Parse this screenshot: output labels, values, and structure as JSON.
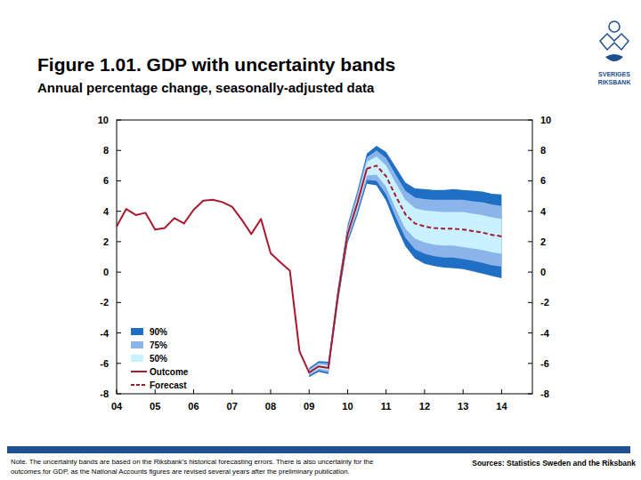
{
  "chart_data": {
    "type": "line",
    "title": "Figure 1.01. GDP with uncertainty bands",
    "subtitle": "Annual percentage change, seasonally-adjusted data",
    "logo_text": [
      "SVERIGES",
      "RIKSBANK"
    ],
    "note": [
      "Note. The uncertainty bands are based on the Riksbank's historical forecasting errors. There is also uncertainty for the",
      "outcomes for GDP, as the National Accounts figures are revised several years after the preliminary publication."
    ],
    "source": "Sources: Statistics Sweden and the Riksbank",
    "x": [
      2004,
      2004.25,
      2004.5,
      2004.75,
      2005,
      2005.25,
      2005.5,
      2005.75,
      2006,
      2006.25,
      2006.5,
      2006.75,
      2007,
      2007.25,
      2007.5,
      2007.75,
      2008,
      2008.25,
      2008.5,
      2008.75,
      2009,
      2009.25,
      2009.5,
      2009.75,
      2010,
      2010.25,
      2010.5,
      2010.75,
      2011,
      2011.25,
      2011.5,
      2011.75,
      2012,
      2012.25,
      2012.5,
      2012.75,
      2013,
      2013.25,
      2013.5,
      2013.75,
      2014
    ],
    "xlim": [
      2004,
      2014.8
    ],
    "xticks": [
      {
        "value": 2004,
        "label": "04"
      },
      {
        "value": 2005,
        "label": "05"
      },
      {
        "value": 2006,
        "label": "06"
      },
      {
        "value": 2007,
        "label": "07"
      },
      {
        "value": 2008,
        "label": "08"
      },
      {
        "value": 2009,
        "label": "09"
      },
      {
        "value": 2010,
        "label": "10"
      },
      {
        "value": 2011,
        "label": "11"
      },
      {
        "value": 2012,
        "label": "12"
      },
      {
        "value": 2013,
        "label": "13"
      },
      {
        "value": 2014,
        "label": "14"
      }
    ],
    "ylim": [
      -8,
      10
    ],
    "yticks": [
      -8,
      -6,
      -4,
      -2,
      0,
      2,
      4,
      6,
      8,
      10
    ],
    "y2lim": [
      -8,
      10
    ],
    "y2ticks": [
      -8,
      -6,
      -4,
      -2,
      0,
      2,
      4,
      6,
      8,
      10
    ],
    "grid": false,
    "legend": "lower left",
    "series": [
      {
        "name": "90%",
        "type": "band",
        "color": "#1f6fc5",
        "lower": [
          null,
          null,
          null,
          null,
          null,
          null,
          null,
          null,
          null,
          null,
          null,
          null,
          null,
          null,
          null,
          null,
          null,
          null,
          null,
          null,
          -6.9,
          -6.55,
          -6.7,
          -2.0,
          1.9,
          3.7,
          5.8,
          5.7,
          4.7,
          3.1,
          1.7,
          0.9,
          0.55,
          0.4,
          0.3,
          0.25,
          0.2,
          0.05,
          -0.1,
          -0.25,
          -0.4
        ],
        "values": [
          null,
          null,
          null,
          null,
          null,
          null,
          null,
          null,
          null,
          null,
          null,
          null,
          null,
          null,
          null,
          null,
          null,
          null,
          null,
          null,
          -6.3,
          -5.85,
          -5.9,
          -1.0,
          3.1,
          5.3,
          7.8,
          8.3,
          7.9,
          6.9,
          5.9,
          5.5,
          5.45,
          5.4,
          5.4,
          5.45,
          5.4,
          5.35,
          5.3,
          5.15,
          5.1
        ]
      },
      {
        "name": "75%",
        "type": "band",
        "color": "#8ab4ea",
        "lower": [
          null,
          null,
          null,
          null,
          null,
          null,
          null,
          null,
          null,
          null,
          null,
          null,
          null,
          null,
          null,
          null,
          null,
          null,
          null,
          null,
          -6.8,
          -6.45,
          -6.6,
          -1.85,
          2.05,
          3.9,
          6.05,
          6.0,
          5.1,
          3.6,
          2.25,
          1.5,
          1.2,
          1.05,
          0.95,
          0.95,
          0.85,
          0.75,
          0.6,
          0.45,
          0.35
        ],
        "values": [
          null,
          null,
          null,
          null,
          null,
          null,
          null,
          null,
          null,
          null,
          null,
          null,
          null,
          null,
          null,
          null,
          null,
          null,
          null,
          null,
          -6.4,
          -5.95,
          -6.0,
          -1.15,
          2.95,
          5.1,
          7.55,
          8.0,
          7.5,
          6.4,
          5.35,
          4.9,
          4.8,
          4.75,
          4.75,
          4.75,
          4.75,
          4.65,
          4.6,
          4.45,
          4.35
        ]
      },
      {
        "name": "50%",
        "type": "band",
        "color": "#c9f1ff",
        "lower": [
          null,
          null,
          null,
          null,
          null,
          null,
          null,
          null,
          null,
          null,
          null,
          null,
          null,
          null,
          null,
          null,
          null,
          null,
          null,
          null,
          -6.7,
          -6.35,
          -6.45,
          -1.7,
          2.25,
          4.15,
          6.35,
          6.4,
          5.6,
          4.15,
          2.85,
          2.2,
          1.95,
          1.8,
          1.75,
          1.75,
          1.65,
          1.55,
          1.45,
          1.3,
          1.2
        ],
        "values": [
          null,
          null,
          null,
          null,
          null,
          null,
          null,
          null,
          null,
          null,
          null,
          null,
          null,
          null,
          null,
          null,
          null,
          null,
          null,
          null,
          -6.5,
          -6.05,
          -6.15,
          -1.3,
          2.75,
          4.85,
          7.25,
          7.6,
          7.0,
          5.85,
          4.75,
          4.2,
          4.05,
          4.0,
          3.95,
          3.95,
          3.95,
          3.85,
          3.75,
          3.6,
          3.5
        ]
      },
      {
        "name": "Outcome",
        "type": "line",
        "line_style": "solid",
        "color": "#a8192e",
        "values": [
          3.0,
          4.15,
          3.75,
          3.9,
          2.8,
          2.9,
          3.55,
          3.2,
          4.1,
          4.7,
          4.75,
          4.6,
          4.3,
          3.45,
          2.5,
          3.5,
          1.25,
          0.65,
          0.1,
          -5.2,
          -6.6,
          -6.2,
          -6.3,
          -1.5,
          2.5,
          4.5,
          6.8,
          null,
          null,
          null,
          null,
          null,
          null,
          null,
          null,
          null,
          null,
          null,
          null,
          null,
          null
        ]
      },
      {
        "name": "Forecast",
        "type": "line",
        "line_style": "dashed",
        "color": "#a8192e",
        "values": [
          null,
          null,
          null,
          null,
          null,
          null,
          null,
          null,
          null,
          null,
          null,
          null,
          null,
          null,
          null,
          null,
          null,
          null,
          null,
          null,
          null,
          null,
          null,
          null,
          null,
          null,
          6.8,
          7.0,
          6.3,
          5.0,
          3.8,
          3.2,
          3.0,
          2.9,
          2.85,
          2.85,
          2.8,
          2.7,
          2.6,
          2.45,
          2.35
        ]
      }
    ]
  }
}
